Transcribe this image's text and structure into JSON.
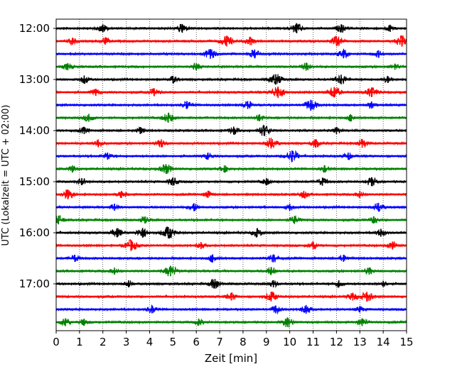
{
  "chart_data": {
    "type": "line",
    "title": "",
    "xlabel": "Zeit  [min]",
    "ylabel": "UTC (Lokalzeit = UTC + 02:00)",
    "xlim": [
      0,
      15
    ],
    "x_ticks": [
      "0",
      "1",
      "2",
      "3",
      "4",
      "5",
      "6",
      "7",
      "8",
      "9",
      "10",
      "11",
      "12",
      "13",
      "14",
      "15"
    ],
    "y_tick_labels": [
      "12:00",
      "13:00",
      "14:00",
      "15:00",
      "16:00",
      "17:00"
    ],
    "grid": "vertical dotted at each minute",
    "trace_interval_min": 15,
    "trace_cycle_colors": [
      "#000000",
      "#ff0000",
      "#0000ff",
      "#008000"
    ],
    "traces": [
      {
        "start": "12:00",
        "color": "#000000",
        "events": [
          [
            2.0,
            0.6
          ],
          [
            5.4,
            0.7
          ],
          [
            10.3,
            0.8
          ],
          [
            12.2,
            0.6
          ],
          [
            14.3,
            0.5
          ]
        ]
      },
      {
        "start": "12:15",
        "color": "#ff0000",
        "events": [
          [
            0.7,
            0.5
          ],
          [
            2.1,
            0.5
          ],
          [
            7.3,
            0.9
          ],
          [
            8.3,
            0.6
          ],
          [
            12.0,
            0.8
          ],
          [
            14.8,
            0.9
          ]
        ]
      },
      {
        "start": "12:30",
        "color": "#0000ff",
        "events": [
          [
            6.6,
            0.8
          ],
          [
            8.5,
            0.7
          ],
          [
            12.3,
            0.7
          ],
          [
            13.8,
            0.5
          ]
        ]
      },
      {
        "start": "12:45",
        "color": "#008000",
        "events": [
          [
            0.5,
            0.5
          ],
          [
            6.0,
            0.5
          ],
          [
            10.7,
            0.6
          ],
          [
            14.5,
            0.4
          ]
        ]
      },
      {
        "start": "13:00",
        "color": "#000000",
        "events": [
          [
            1.2,
            0.6
          ],
          [
            5.0,
            0.5
          ],
          [
            9.4,
            0.9
          ],
          [
            12.2,
            0.8
          ],
          [
            14.2,
            0.5
          ]
        ]
      },
      {
        "start": "13:15",
        "color": "#ff0000",
        "events": [
          [
            1.7,
            0.5
          ],
          [
            4.2,
            0.6
          ],
          [
            9.5,
            1.0
          ],
          [
            11.9,
            0.9
          ],
          [
            13.5,
            0.8
          ]
        ]
      },
      {
        "start": "13:30",
        "color": "#0000ff",
        "events": [
          [
            5.6,
            0.6
          ],
          [
            8.2,
            0.6
          ],
          [
            10.9,
            0.9
          ],
          [
            13.5,
            0.5
          ]
        ]
      },
      {
        "start": "13:45",
        "color": "#008000",
        "events": [
          [
            1.4,
            0.6
          ],
          [
            4.8,
            0.8
          ],
          [
            8.7,
            0.5
          ],
          [
            12.6,
            0.5
          ]
        ]
      },
      {
        "start": "14:00",
        "color": "#000000",
        "events": [
          [
            1.2,
            0.5
          ],
          [
            3.6,
            0.5
          ],
          [
            7.6,
            0.6
          ],
          [
            8.9,
            0.9
          ],
          [
            12.0,
            0.5
          ]
        ]
      },
      {
        "start": "14:15",
        "color": "#ff0000",
        "events": [
          [
            1.8,
            0.6
          ],
          [
            4.5,
            0.6
          ],
          [
            9.2,
            0.9
          ],
          [
            11.1,
            0.6
          ],
          [
            13.1,
            0.7
          ]
        ]
      },
      {
        "start": "14:30",
        "color": "#0000ff",
        "events": [
          [
            2.2,
            0.5
          ],
          [
            6.5,
            0.5
          ],
          [
            10.1,
            1.0
          ],
          [
            12.5,
            0.5
          ]
        ]
      },
      {
        "start": "14:45",
        "color": "#008000",
        "events": [
          [
            0.7,
            0.5
          ],
          [
            4.7,
            0.8
          ],
          [
            7.2,
            0.5
          ],
          [
            11.5,
            0.5
          ]
        ]
      },
      {
        "start": "15:00",
        "color": "#000000",
        "events": [
          [
            1.1,
            0.5
          ],
          [
            5.0,
            0.6
          ],
          [
            9.0,
            0.5
          ],
          [
            11.4,
            0.6
          ],
          [
            13.5,
            0.7
          ]
        ]
      },
      {
        "start": "15:15",
        "color": "#ff0000",
        "events": [
          [
            0.5,
            0.8
          ],
          [
            2.8,
            0.5
          ],
          [
            6.5,
            0.5
          ],
          [
            10.6,
            0.5
          ],
          [
            13.0,
            0.5
          ]
        ]
      },
      {
        "start": "15:30",
        "color": "#0000ff",
        "events": [
          [
            2.5,
            0.5
          ],
          [
            5.9,
            0.6
          ],
          [
            10.0,
            0.5
          ],
          [
            13.8,
            0.7
          ]
        ]
      },
      {
        "start": "15:45",
        "color": "#008000",
        "events": [
          [
            0.1,
            0.7
          ],
          [
            3.8,
            0.5
          ],
          [
            10.2,
            0.6
          ],
          [
            13.6,
            0.5
          ]
        ]
      },
      {
        "start": "16:00",
        "color": "#000000",
        "events": [
          [
            2.6,
            0.7
          ],
          [
            3.7,
            0.8
          ],
          [
            4.8,
            1.0
          ],
          [
            8.6,
            0.7
          ],
          [
            13.9,
            0.6
          ]
        ]
      },
      {
        "start": "16:15",
        "color": "#ff0000",
        "events": [
          [
            3.2,
            0.9
          ],
          [
            6.2,
            0.5
          ],
          [
            11.0,
            0.6
          ],
          [
            14.4,
            0.6
          ]
        ]
      },
      {
        "start": "16:30",
        "color": "#0000ff",
        "events": [
          [
            0.8,
            0.5
          ],
          [
            6.7,
            0.6
          ],
          [
            9.3,
            0.6
          ],
          [
            12.3,
            0.5
          ]
        ]
      },
      {
        "start": "16:45",
        "color": "#008000",
        "events": [
          [
            2.5,
            0.5
          ],
          [
            4.9,
            0.9
          ],
          [
            9.2,
            0.6
          ],
          [
            13.4,
            0.5
          ]
        ]
      },
      {
        "start": "17:00",
        "color": "#000000",
        "events": [
          [
            3.1,
            0.5
          ],
          [
            6.8,
            0.8
          ],
          [
            9.3,
            0.5
          ],
          [
            12.1,
            0.5
          ],
          [
            14.0,
            0.4
          ]
        ]
      },
      {
        "start": "17:15",
        "color": "#ff0000",
        "events": [
          [
            7.5,
            0.6
          ],
          [
            9.2,
            0.8
          ],
          [
            12.7,
            0.6
          ],
          [
            13.3,
            0.8
          ]
        ]
      },
      {
        "start": "17:30",
        "color": "#0000ff",
        "events": [
          [
            4.1,
            0.6
          ],
          [
            9.4,
            0.6
          ],
          [
            10.7,
            0.7
          ],
          [
            13.0,
            0.4
          ]
        ]
      },
      {
        "start": "17:45",
        "color": "#008000",
        "events": [
          [
            0.4,
            0.6
          ],
          [
            1.2,
            0.5
          ],
          [
            6.1,
            0.5
          ],
          [
            9.9,
            0.8
          ],
          [
            13.1,
            0.6
          ]
        ]
      }
    ]
  }
}
